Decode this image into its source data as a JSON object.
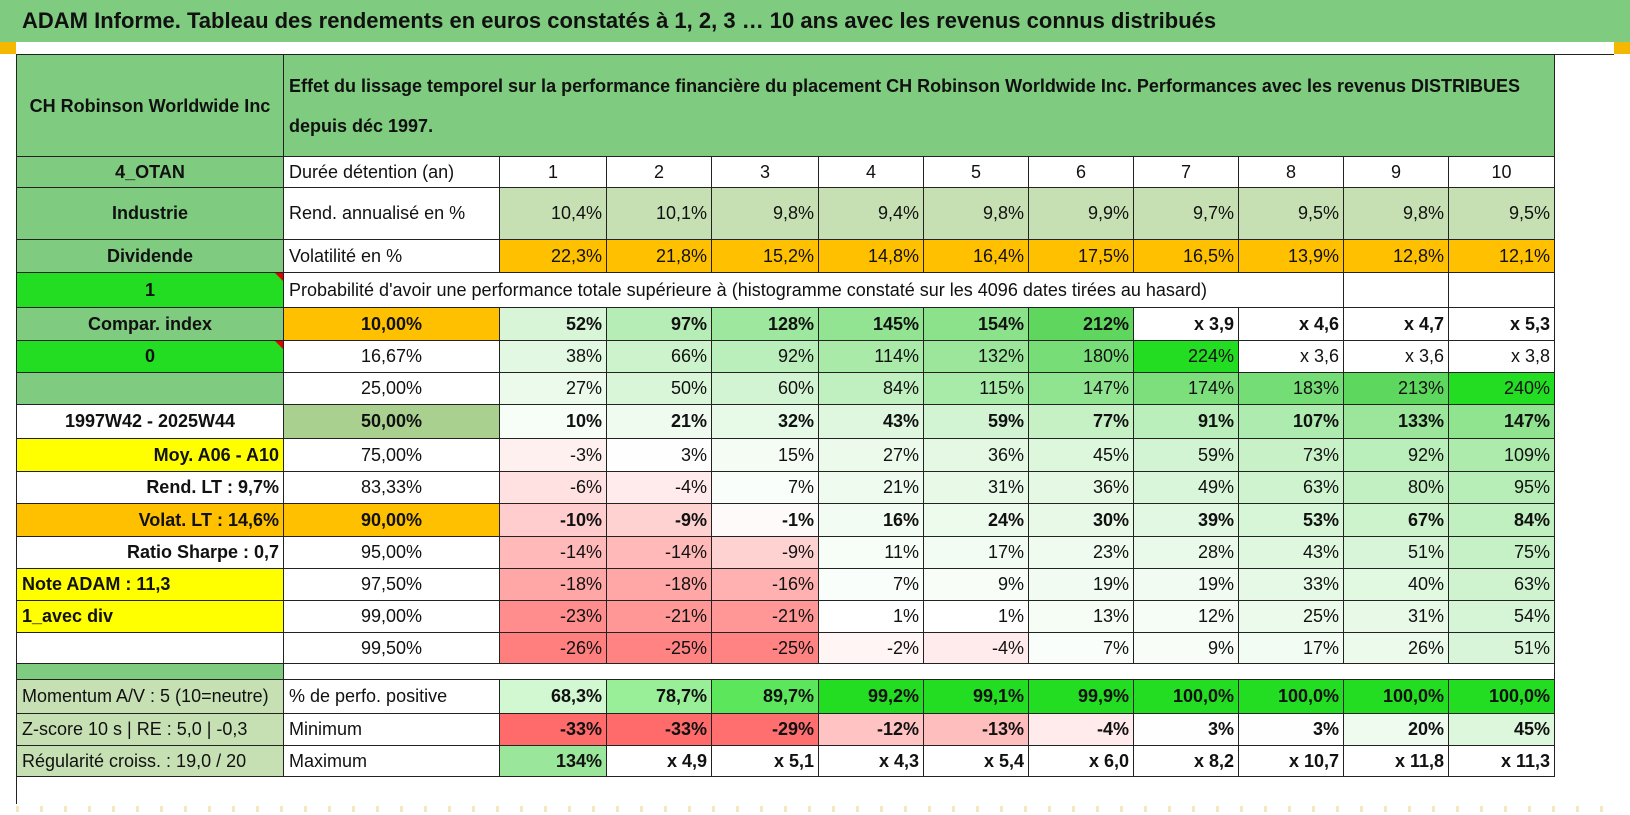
{
  "title": "ADAM Informe. Tableau des rendements en euros constatés à 1, 2, 3 … 10 ans avec les revenus connus distribués",
  "header": {
    "company": "CH Robinson Worldwide Inc",
    "description": "Effet du lissage temporel sur la performance financière du placement CH Robinson Worldwide Inc. Performances avec les revenus DISTRIBUES depuis déc 1997."
  },
  "left_panel": {
    "category": "4_OTAN",
    "sector": "Industrie",
    "type": "Dividende",
    "flag_1": "1",
    "compar_index": "Compar. index",
    "flag_0": "0",
    "blank": "",
    "period": "1997W42 - 2025W44",
    "moy": "Moy. A06 - A10",
    "rend_lt": "Rend. LT :   9,7%",
    "volat_lt": "Volat. LT :   14,6%",
    "sharpe": "Ratio Sharpe :    0,7",
    "note": "Note ADAM : 11,3",
    "div_mode": "1_avec div",
    "momentum": "Momentum A/V : 5 (10=neutre)",
    "zscore": "Z-score 10 s | RE : 5,0 | -0,3",
    "regularite": "Régularité croiss. : 19,0 / 20"
  },
  "table": {
    "duration_label": "Durée détention (an)",
    "years": [
      "1",
      "2",
      "3",
      "4",
      "5",
      "6",
      "7",
      "8",
      "9",
      "10"
    ],
    "rend_label": "Rend. annualisé en %",
    "rend": [
      "10,4%",
      "10,1%",
      "9,8%",
      "9,4%",
      "9,8%",
      "9,9%",
      "9,7%",
      "9,5%",
      "9,8%",
      "9,5%"
    ],
    "vol_label": "Volatilité en %",
    "vol": [
      "22,3%",
      "21,8%",
      "15,2%",
      "14,8%",
      "16,4%",
      "17,5%",
      "16,5%",
      "13,9%",
      "12,8%",
      "12,1%"
    ],
    "proba_label": "Probabilité d'avoir une performance totale supérieure à (histogramme constaté sur les 4096 dates tirées au hasard)",
    "prob_rows": [
      {
        "p": "10,00%",
        "v": [
          "52%",
          "97%",
          "128%",
          "145%",
          "154%",
          "212%",
          "x 3,9",
          "x 4,6",
          "x 4,7",
          "x 5,3"
        ]
      },
      {
        "p": "16,67%",
        "v": [
          "38%",
          "66%",
          "92%",
          "114%",
          "132%",
          "180%",
          "224%",
          "x 3,6",
          "x 3,6",
          "x 3,8"
        ]
      },
      {
        "p": "25,00%",
        "v": [
          "27%",
          "50%",
          "60%",
          "84%",
          "115%",
          "147%",
          "174%",
          "183%",
          "213%",
          "240%"
        ]
      },
      {
        "p": "50,00%",
        "v": [
          "10%",
          "21%",
          "32%",
          "43%",
          "59%",
          "77%",
          "91%",
          "107%",
          "133%",
          "147%"
        ]
      },
      {
        "p": "75,00%",
        "v": [
          "-3%",
          "3%",
          "15%",
          "27%",
          "36%",
          "45%",
          "59%",
          "73%",
          "92%",
          "109%"
        ]
      },
      {
        "p": "83,33%",
        "v": [
          "-6%",
          "-4%",
          "7%",
          "21%",
          "31%",
          "36%",
          "49%",
          "63%",
          "80%",
          "95%"
        ]
      },
      {
        "p": "90,00%",
        "v": [
          "-10%",
          "-9%",
          "-1%",
          "16%",
          "24%",
          "30%",
          "39%",
          "53%",
          "67%",
          "84%"
        ]
      },
      {
        "p": "95,00%",
        "v": [
          "-14%",
          "-14%",
          "-9%",
          "11%",
          "17%",
          "23%",
          "28%",
          "43%",
          "51%",
          "75%"
        ]
      },
      {
        "p": "97,50%",
        "v": [
          "-18%",
          "-18%",
          "-16%",
          "7%",
          "9%",
          "19%",
          "19%",
          "33%",
          "40%",
          "63%"
        ]
      },
      {
        "p": "99,00%",
        "v": [
          "-23%",
          "-21%",
          "-21%",
          "1%",
          "1%",
          "13%",
          "12%",
          "25%",
          "31%",
          "54%"
        ]
      },
      {
        "p": "99,50%",
        "v": [
          "-26%",
          "-25%",
          "-25%",
          "-2%",
          "-4%",
          "7%",
          "9%",
          "17%",
          "26%",
          "51%"
        ]
      }
    ],
    "positive_label": "% de perfo. positive",
    "positive": [
      "68,3%",
      "78,7%",
      "89,7%",
      "99,2%",
      "99,1%",
      "99,9%",
      "100,0%",
      "100,0%",
      "100,0%",
      "100,0%"
    ],
    "min_label": "Minimum",
    "min": [
      "-33%",
      "-33%",
      "-29%",
      "-12%",
      "-13%",
      "-4%",
      "3%",
      "3%",
      "20%",
      "45%"
    ],
    "max_label": "Maximum",
    "max": [
      "134%",
      "x 4,9",
      "x 5,1",
      "x 4,3",
      "x 5,4",
      "x 6,0",
      "x 8,2",
      "x 10,7",
      "x 11,8",
      "x 11,3"
    ]
  },
  "colors": {
    "title_green": "#7fcb7f",
    "light_green": "#c6e0b4",
    "bright_green": "#22dd22",
    "orange": "#ffc000",
    "yellow": "#ffff00",
    "red_text": "#e00000"
  }
}
